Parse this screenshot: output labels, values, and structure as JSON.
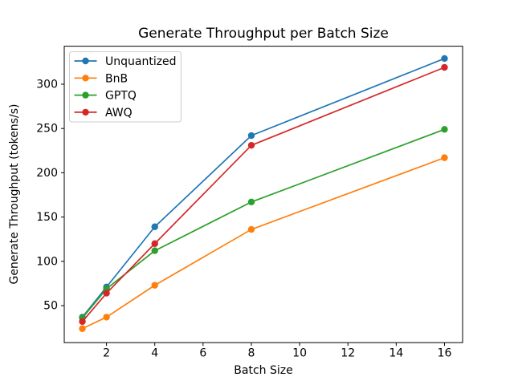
{
  "figure": {
    "background_color": "#ffffff",
    "spine_color": "#000000",
    "legend_border_color": "#cccccc",
    "legend_background_color": "#ffffff"
  },
  "chart_data": {
    "type": "line",
    "title": "Generate Throughput per Batch Size",
    "xlabel": "Batch Size",
    "ylabel": "Generate Throughput (tokens/s)",
    "x": [
      1,
      2,
      4,
      8,
      16
    ],
    "series": [
      {
        "name": "Unquantized",
        "color": "#1f77b4",
        "marker": "circle",
        "values": [
          37,
          71,
          139,
          242,
          329
        ]
      },
      {
        "name": "BnB",
        "color": "#ff7f0e",
        "marker": "circle",
        "values": [
          24,
          37,
          73,
          136,
          217
        ]
      },
      {
        "name": "GPTQ",
        "color": "#2ca02c",
        "marker": "circle",
        "values": [
          36,
          69,
          112,
          167,
          249
        ]
      },
      {
        "name": "AWQ",
        "color": "#d62728",
        "marker": "circle",
        "values": [
          32,
          64,
          120,
          231,
          319
        ]
      }
    ],
    "xticks": [
      2,
      4,
      6,
      8,
      10,
      12,
      14,
      16
    ],
    "yticks": [
      50,
      100,
      150,
      200,
      250,
      300
    ],
    "xlim": [
      0.25,
      16.75
    ],
    "ylim": [
      8.2,
      342.9
    ],
    "grid": false,
    "legend_position": "upper left",
    "legend_entries": [
      "Unquantized",
      "BnB",
      "GPTQ",
      "AWQ"
    ]
  }
}
